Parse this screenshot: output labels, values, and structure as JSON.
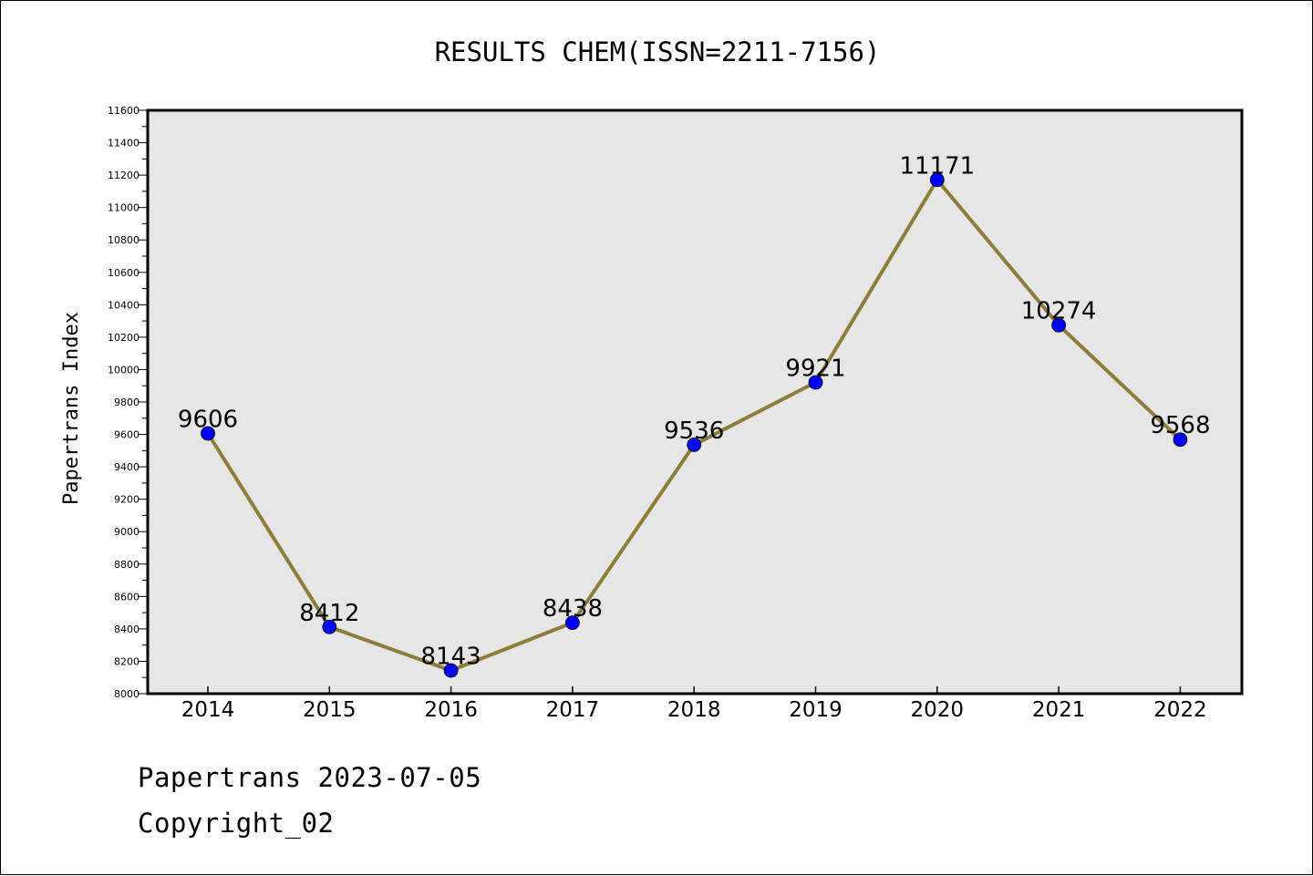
{
  "footer": {
    "date_line": "Papertrans 2023-07-05",
    "copyright_line": "Copyright_02"
  },
  "chart_data": {
    "type": "line",
    "title": "RESULTS CHEM(ISSN=2211-7156)",
    "xlabel": "",
    "ylabel": "Papertrans Index",
    "categories": [
      "2014",
      "2015",
      "2016",
      "2017",
      "2018",
      "2019",
      "2020",
      "2021",
      "2022"
    ],
    "series": [
      {
        "values": [
          9606,
          8412,
          8143,
          8438,
          9536,
          9921,
          11171,
          10274,
          9568
        ],
        "data_labels": [
          "9606",
          "8412",
          "8143",
          "8438",
          "9536",
          "9921",
          "11171",
          "10274",
          "9568"
        ],
        "line_color": "#8b7d3a",
        "marker_color": "#0000ff"
      }
    ],
    "ylim": [
      8000,
      11600
    ],
    "yticks": [
      "8000",
      "8200",
      "8400",
      "8600",
      "8800",
      "9000",
      "9200",
      "9400",
      "9600",
      "9800",
      "10000",
      "10200",
      "10400",
      "10600",
      "10800",
      "11000",
      "11200",
      "11400",
      "11600"
    ],
    "plot_background": "#e6e6e6",
    "grid": false,
    "legend": "none"
  }
}
